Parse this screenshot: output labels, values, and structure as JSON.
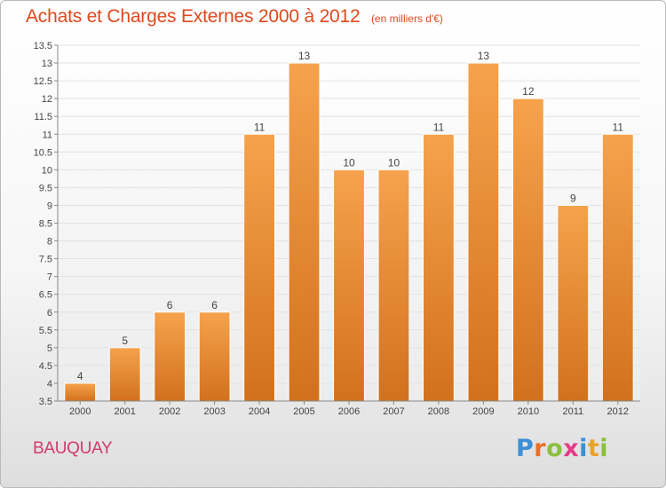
{
  "header": {
    "title": "Achats et Charges Externes 2000 à 2012",
    "unit": "(en milliers d'€)"
  },
  "footer": {
    "commune": "BAUQUAY",
    "brand": "Proxiti",
    "brand_letters": [
      {
        "ch": "P",
        "color": "#3d8fd6"
      },
      {
        "ch": "r",
        "color": "#e8702a"
      },
      {
        "ch": "o",
        "color": "#8bbf3c"
      },
      {
        "ch": "x",
        "color": "#e43d8a"
      },
      {
        "ch": "i",
        "color": "#3d8fd6"
      },
      {
        "ch": "t",
        "color": "#e8a32a"
      },
      {
        "ch": "i",
        "color": "#8bbf3c"
      }
    ]
  },
  "chart_data": {
    "type": "bar",
    "title": "Achats et Charges Externes 2000 à 2012",
    "subtitle": "(en milliers d'€)",
    "categories": [
      "2000",
      "2001",
      "2002",
      "2003",
      "2004",
      "2005",
      "2006",
      "2007",
      "2008",
      "2009",
      "2010",
      "2011",
      "2012"
    ],
    "values": [
      4,
      5,
      6,
      6,
      11,
      13,
      10,
      10,
      11,
      13,
      12,
      9,
      11
    ],
    "data_labels": [
      "4",
      "5",
      "6",
      "6",
      "11",
      "13",
      "10",
      "10",
      "11",
      "13",
      "12",
      "9",
      "11"
    ],
    "yticks": [
      "3.5",
      "4",
      "4.5",
      "5",
      "5.5",
      "6",
      "6.5",
      "7",
      "7.5",
      "8",
      "8.5",
      "9",
      "9.5",
      "10",
      "10.5",
      "11",
      "11.5",
      "12",
      "12.5",
      "13",
      "13.5"
    ],
    "ylim": [
      3.5,
      13.5
    ],
    "xlabel": "",
    "ylabel": "",
    "grid": true,
    "bar_color_top": "#f6a24c",
    "bar_color_bottom": "#d2711d"
  }
}
